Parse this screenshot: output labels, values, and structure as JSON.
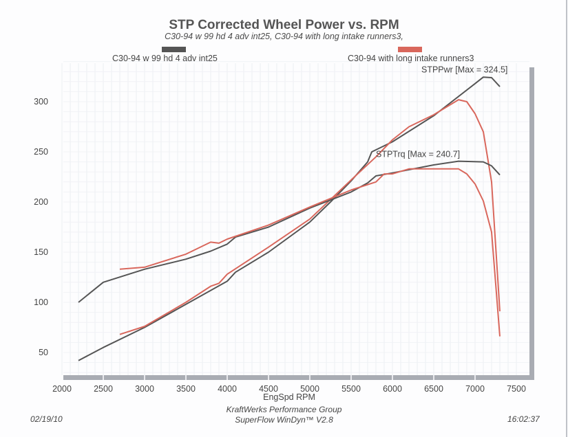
{
  "chart_data": {
    "type": "line",
    "title": "STP Corrected Wheel Power vs. RPM",
    "subtitle": "C30-94 w 99 hd 4 adv int25, C30-94 with long intake runners3,",
    "xlabel": "EngSpd  RPM",
    "ylabel": "",
    "xlim": [
      2000,
      7500
    ],
    "ylim": [
      25,
      345
    ],
    "x_ticks": [
      "2000",
      "2500",
      "3000",
      "3500",
      "4000",
      "4500",
      "5000",
      "5500",
      "6000",
      "6500",
      "7000",
      "7500"
    ],
    "y_ticks": [
      "50",
      "100",
      "150",
      "200",
      "250",
      "300"
    ],
    "grid": true,
    "legend": [
      {
        "name": "C30-94 w 99 hd 4 adv int25",
        "color": "#555555",
        "position": "top-left"
      },
      {
        "name": "C30-94 with long intake runners3",
        "color": "#d9675c",
        "position": "top-right"
      }
    ],
    "annotations": [
      {
        "text": "STPPwr [Max = 324.5]",
        "x": 6500,
        "y": 329
      },
      {
        "text": "STPTrq [Max = 240.7]",
        "x": 5950,
        "y": 245
      }
    ],
    "series": [
      {
        "name": "C30-94 w 99 hd 4 adv int25 STPPwr",
        "color": "#555555",
        "x": [
          2200,
          2500,
          3000,
          3500,
          4000,
          4100,
          4500,
          5000,
          5250,
          5500,
          5700,
          5750,
          6000,
          6500,
          7000,
          7100,
          7200,
          7300
        ],
        "y": [
          42,
          55,
          75,
          98,
          121,
          130,
          150,
          180,
          200,
          221,
          240,
          250,
          260,
          286,
          318,
          324.5,
          324,
          315
        ]
      },
      {
        "name": "C30-94 with long intake runners3 STPPwr",
        "color": "#d9675c",
        "x": [
          2700,
          3000,
          3500,
          3800,
          3900,
          4000,
          4500,
          5000,
          5500,
          5800,
          6000,
          6200,
          6500,
          6800,
          6900,
          7000,
          7100,
          7200,
          7300
        ],
        "y": [
          68,
          76,
          100,
          116,
          119,
          128,
          155,
          183,
          222,
          245,
          262,
          275,
          287,
          302,
          300,
          288,
          270,
          220,
          91
        ]
      },
      {
        "name": "C30-94 w 99 hd 4 adv int25 STPTrq",
        "color": "#555555",
        "x": [
          2200,
          2500,
          3000,
          3500,
          3800,
          4000,
          4100,
          4500,
          5000,
          5500,
          5700,
          5800,
          6000,
          6500,
          6800,
          7100,
          7200,
          7300
        ],
        "y": [
          100,
          120,
          133,
          143,
          151,
          158,
          165,
          175,
          194,
          210,
          219,
          226,
          229,
          237,
          240.7,
          240,
          236,
          227
        ]
      },
      {
        "name": "C30-94 with long intake runners3 STPTrq",
        "color": "#d9675c",
        "x": [
          2700,
          3000,
          3500,
          3800,
          3900,
          4000,
          4500,
          5000,
          5500,
          5800,
          5900,
          6000,
          6200,
          6500,
          6800,
          6900,
          7000,
          7100,
          7200,
          7300
        ],
        "y": [
          133,
          135,
          148,
          160,
          159,
          163,
          177,
          195,
          212,
          220,
          228,
          228,
          233,
          233,
          233,
          228,
          218,
          201,
          170,
          66
        ]
      }
    ]
  },
  "footer": {
    "company": "KraftWerks Performance Group",
    "software": "SuperFlow WinDyn™ V2.8",
    "date": "02/19/10",
    "time": "16:02:37"
  }
}
